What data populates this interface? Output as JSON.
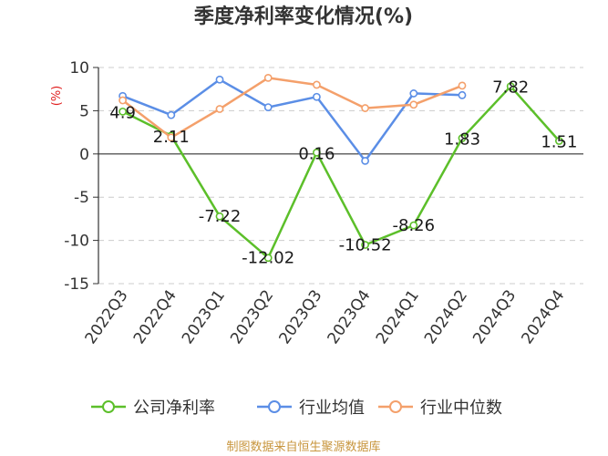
{
  "chart_data": {
    "type": "line",
    "title": "季度净利率变化情况(%)",
    "ylabel": "(%)",
    "xlabel": "",
    "ylim": [
      -15,
      10
    ],
    "yticks": [
      10,
      5,
      0,
      -5,
      -10,
      -15
    ],
    "ytick_labels": [
      "10",
      "5",
      "0",
      "-5",
      "-10",
      "-15"
    ],
    "grid": true,
    "legend_position": "bottom",
    "categories": [
      "2022Q3",
      "2022Q4",
      "2023Q1",
      "2023Q2",
      "2023Q3",
      "2023Q4",
      "2024Q1",
      "2024Q2",
      "2024Q3",
      "2024Q4"
    ],
    "series": [
      {
        "name": "公司净利率",
        "color": "#5cbf2a",
        "values": [
          4.9,
          2.11,
          -7.22,
          -12.02,
          0.16,
          -10.52,
          -8.26,
          1.83,
          7.82,
          1.51
        ],
        "labels": [
          "4.9",
          "2.11",
          "-7.22",
          "-12.02",
          "0.16",
          "-10.52",
          "-8.26",
          "1.83",
          "7.82",
          "1.51"
        ]
      },
      {
        "name": "行业均值",
        "color": "#5b8ee6",
        "values": [
          6.7,
          4.5,
          8.6,
          5.4,
          6.6,
          -0.8,
          7.0,
          6.8,
          null,
          null
        ]
      },
      {
        "name": "行业中位数",
        "color": "#f4a06b",
        "values": [
          6.2,
          1.9,
          5.2,
          8.8,
          8.0,
          5.3,
          5.7,
          7.9,
          null,
          null
        ]
      }
    ]
  },
  "footer": {
    "source": "制图数据来自恒生聚源数据库"
  }
}
